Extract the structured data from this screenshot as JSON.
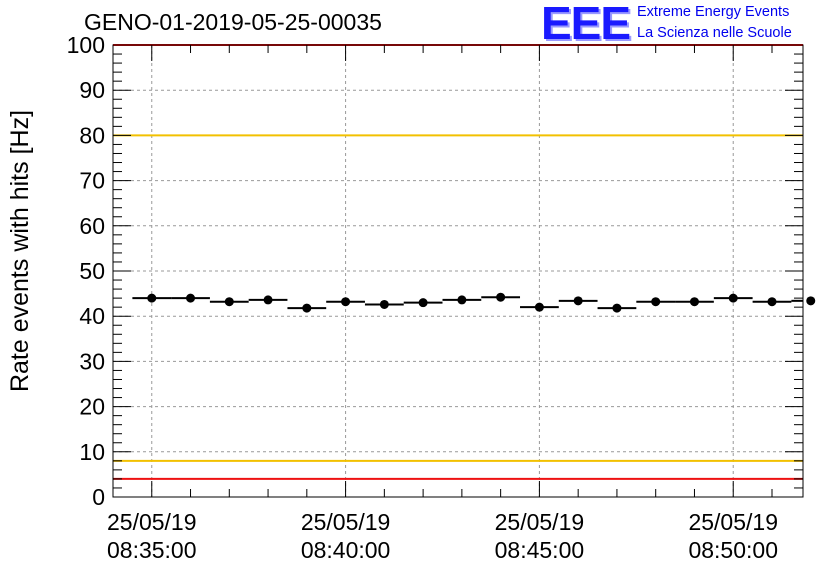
{
  "logo": {
    "mark": "EEE",
    "line1": "Extreme Energy Events",
    "line2": "La Scienza nelle Scuole",
    "color": "#0000ee"
  },
  "chart_data": {
    "type": "scatter",
    "title": "GENO-01-2019-05-25-00035",
    "xlabel": "",
    "ylabel": "Rate events with hits [Hz]",
    "ylim": [
      0,
      100
    ],
    "yticks": [
      0,
      10,
      20,
      30,
      40,
      50,
      60,
      70,
      80,
      90,
      100
    ],
    "xlim_minutes": [
      -1.0,
      16.8
    ],
    "xticks": [
      {
        "minute": 0,
        "date": "25/05/19",
        "time": "08:35:00"
      },
      {
        "minute": 5,
        "date": "25/05/19",
        "time": "08:40:00"
      },
      {
        "minute": 10,
        "date": "25/05/19",
        "time": "08:45:00"
      },
      {
        "minute": 15,
        "date": "25/05/19",
        "time": "08:50:00"
      }
    ],
    "grid": true,
    "bin_width_minutes": 1,
    "x_minutes": [
      0,
      1,
      2,
      3,
      4,
      5,
      6,
      7,
      8,
      9,
      10,
      11,
      12,
      13,
      14,
      15,
      16,
      17
    ],
    "values": [
      44.0,
      44.0,
      43.2,
      43.6,
      41.8,
      43.2,
      42.6,
      43.0,
      43.6,
      44.2,
      42.0,
      43.4,
      41.8,
      43.2,
      43.2,
      44.0,
      43.2,
      43.4
    ],
    "reference_lines": [
      {
        "y": 100,
        "color": "#ee1111"
      },
      {
        "y": 80,
        "color": "#f2c100"
      },
      {
        "y": 8,
        "color": "#f2c100"
      },
      {
        "y": 4,
        "color": "#ee1111"
      }
    ]
  }
}
